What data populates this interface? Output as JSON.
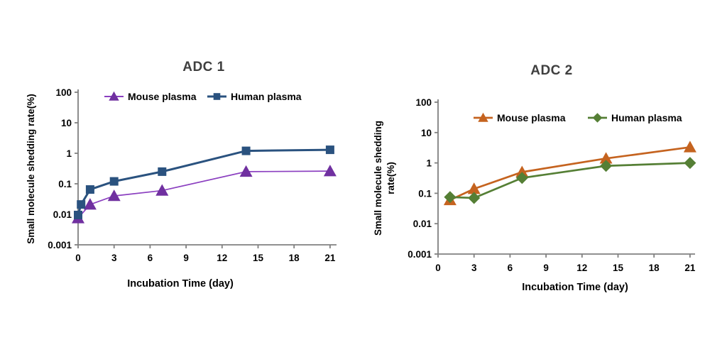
{
  "palette": {
    "background": "#ffffff",
    "title_text": "#3f3f3f",
    "axis": "#808080",
    "tick_text": "#000000",
    "mouse_plasma_adc1": "#7030A0",
    "human_plasma_adc1": "#2A527F",
    "mouse_plasma_adc2": "#C5631F",
    "human_plasma_adc2": "#557F35"
  },
  "chart_data": [
    {
      "type": "line",
      "title": "ADC 1",
      "xlabel": "Incubation Time (day)",
      "ylabel_lines": [
        "Small molecule shedding rate(%)"
      ],
      "x_ticks": [
        "0",
        "3",
        "6",
        "9",
        "12",
        "15",
        "18",
        "21"
      ],
      "y_ticks": [
        "100",
        "10",
        "1",
        "0.1",
        "0.01",
        "0.001"
      ],
      "y_scale": "log",
      "xlim": [
        0,
        21
      ],
      "ylim": [
        0.001,
        100
      ],
      "grid": false,
      "legend_position": "top-inside",
      "series": [
        {
          "name": "Mouse plasma",
          "marker": "triangle",
          "color": "#7030A0",
          "line_color": "#8B3FC0",
          "line_width": 1.7,
          "x": [
            0,
            1,
            3,
            7,
            14,
            21
          ],
          "y": [
            0.0075,
            0.021,
            0.04,
            0.06,
            0.25,
            0.26
          ]
        },
        {
          "name": "Human plasma",
          "marker": "square",
          "color": "#2A527F",
          "line_color": "#2A527F",
          "line_width": 3,
          "x": [
            0,
            0.25,
            1,
            3,
            7,
            14,
            21
          ],
          "y": [
            0.0095,
            0.021,
            0.065,
            0.12,
            0.25,
            1.2,
            1.3
          ]
        }
      ]
    },
    {
      "type": "line",
      "title": "ADC 2",
      "xlabel": "Incubation Time (day)",
      "ylabel_lines": [
        "Small molecule shedding",
        "rate(%)"
      ],
      "x_ticks": [
        "0",
        "3",
        "6",
        "9",
        "12",
        "15",
        "18",
        "21"
      ],
      "y_ticks": [
        "100",
        "10",
        "1",
        "0.1",
        "0.01",
        "0.001"
      ],
      "y_scale": "log",
      "xlim": [
        0,
        21
      ],
      "ylim": [
        0.001,
        100
      ],
      "grid": false,
      "legend_position": "top-inside",
      "series": [
        {
          "name": "Mouse plasma",
          "marker": "triangle",
          "color": "#C5631F",
          "line_color": "#C5631F",
          "line_width": 2.7,
          "x": [
            1,
            3,
            7,
            14,
            21
          ],
          "y": [
            0.06,
            0.14,
            0.5,
            1.4,
            3.3
          ]
        },
        {
          "name": "Human plasma",
          "marker": "diamond",
          "color": "#557F35",
          "line_color": "#557F35",
          "line_width": 2.7,
          "x": [
            1,
            3,
            7,
            14,
            21
          ],
          "y": [
            0.075,
            0.07,
            0.32,
            0.8,
            1.0
          ]
        }
      ]
    }
  ]
}
